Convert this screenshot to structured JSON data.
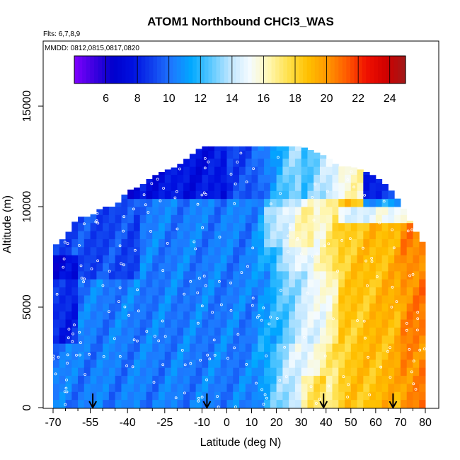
{
  "chart_data": {
    "type": "heatmap",
    "title": "ATOM1 Northbound CHCl3_WAS",
    "subtitle_flights": "Flts: 6,7,8,9",
    "subtitle_dates": "MMDD: 0812,0815,0817,0820",
    "xlabel": "Latitude (deg N)",
    "ylabel": "Altitude (m)",
    "xlim": [
      -70,
      80
    ],
    "ylim": [
      0,
      17500
    ],
    "x_major_ticks": [
      -70,
      -55,
      -40,
      -25,
      -10,
      0,
      10,
      20,
      30,
      40,
      50,
      60,
      70,
      80
    ],
    "x_tick_labels": [
      "-70",
      "-55",
      "-40",
      "-25",
      "-10",
      "0",
      "10",
      "20",
      "30",
      "40",
      "50",
      "60",
      "70",
      "80"
    ],
    "x_minor_ticks": [
      -65,
      -60,
      -50,
      -45,
      -35,
      -30,
      -20,
      -15,
      -5,
      5,
      15,
      25,
      35,
      45,
      55,
      65,
      75
    ],
    "y_ticks": [
      0,
      5000,
      10000,
      15000
    ],
    "y_tick_labels": [
      "0",
      "5000",
      "10000",
      "15000"
    ],
    "colorbar": {
      "range": [
        4,
        25
      ],
      "ticks": [
        6,
        8,
        10,
        12,
        14,
        16,
        18,
        20,
        22,
        24
      ],
      "tick_labels": [
        "6",
        "8",
        "10",
        "12",
        "14",
        "16",
        "18",
        "20",
        "22",
        "24"
      ],
      "colors": [
        "#7f00ff",
        "#3d00e0",
        "#0000cc",
        "#0010e0",
        "#1040ee",
        "#1e78ff",
        "#00a8ff",
        "#5ac8ff",
        "#bfe6ff",
        "#f4fbff",
        "#fff6b0",
        "#ffe04a",
        "#ffc000",
        "#ff9600",
        "#ff5a00",
        "#f01000",
        "#d00000",
        "#a01818"
      ]
    },
    "profile_latitudes": [
      -54,
      -8,
      39,
      67
    ],
    "envelope": [
      {
        "lat": -70,
        "top": 8000
      },
      {
        "lat": -65,
        "top": 8500
      },
      {
        "lat": -60,
        "top": 9500
      },
      {
        "lat": -55,
        "top": 9500
      },
      {
        "lat": -50,
        "top": 10000
      },
      {
        "lat": -45,
        "top": 10000
      },
      {
        "lat": -40,
        "top": 10800
      },
      {
        "lat": -35,
        "top": 11000
      },
      {
        "lat": -30,
        "top": 11500
      },
      {
        "lat": -25,
        "top": 11800
      },
      {
        "lat": -20,
        "top": 12000
      },
      {
        "lat": -15,
        "top": 12500
      },
      {
        "lat": -10,
        "top": 13000
      },
      {
        "lat": 0,
        "top": 13000
      },
      {
        "lat": 10,
        "top": 13000
      },
      {
        "lat": 20,
        "top": 13000
      },
      {
        "lat": 30,
        "top": 13000
      },
      {
        "lat": 40,
        "top": 12500
      },
      {
        "lat": 45,
        "top": 12000
      },
      {
        "lat": 50,
        "top": 12000
      },
      {
        "lat": 55,
        "top": 11800
      },
      {
        "lat": 60,
        "top": 11500
      },
      {
        "lat": 65,
        "top": 11000
      },
      {
        "lat": 70,
        "top": 10200
      },
      {
        "lat": 75,
        "top": 9000
      },
      {
        "lat": 80,
        "top": 8000
      }
    ]
  }
}
